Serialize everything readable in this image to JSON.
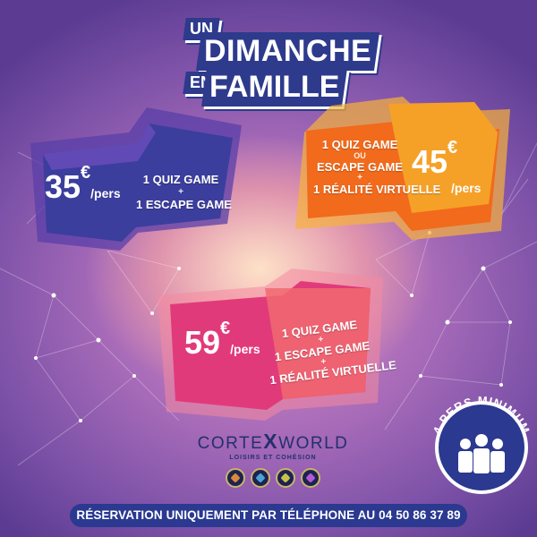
{
  "title": {
    "line1_small": "UN",
    "line1_big": "DIMANCHE",
    "line2_small": "EN",
    "line2_big": "FAMILLE"
  },
  "offers": [
    {
      "price": "35",
      "currency": "€",
      "per": "/pers",
      "items": [
        "1 QUIZ GAME",
        "1 ESCAPE GAME"
      ],
      "separator": "+",
      "color": "#3b3e9c"
    },
    {
      "price": "45",
      "currency": "€",
      "per": "/pers",
      "items": [
        "1 QUIZ GAME",
        "OU",
        "ESCAPE GAME",
        "1 RÉALITÉ VIRTUELLE"
      ],
      "separator": "+",
      "color": "#f26a1b"
    },
    {
      "price": "59",
      "currency": "€",
      "per": "/pers",
      "items": [
        "1 QUIZ GAME",
        "1 ESCAPE GAME",
        "1 RÉALITÉ VIRTUELLE"
      ],
      "separator": "+",
      "color": "#e13a7a"
    }
  ],
  "badge": {
    "text": "4 PERS MINIMUM",
    "icon": "group-people-icon"
  },
  "logo": {
    "brand_left": "CORTE",
    "brand_x": "X",
    "brand_right": "WORLD",
    "tagline": "LOISIRS ET COHÉSION",
    "icons": [
      "quiz-game-icon",
      "escape-game-icon",
      "virtual-reality-icon",
      "universe-icon"
    ]
  },
  "footer": {
    "text": "RÉSERVATION UNIQUEMENT PAR TÉLÉPHONE AU 04 50 86 37 89"
  }
}
